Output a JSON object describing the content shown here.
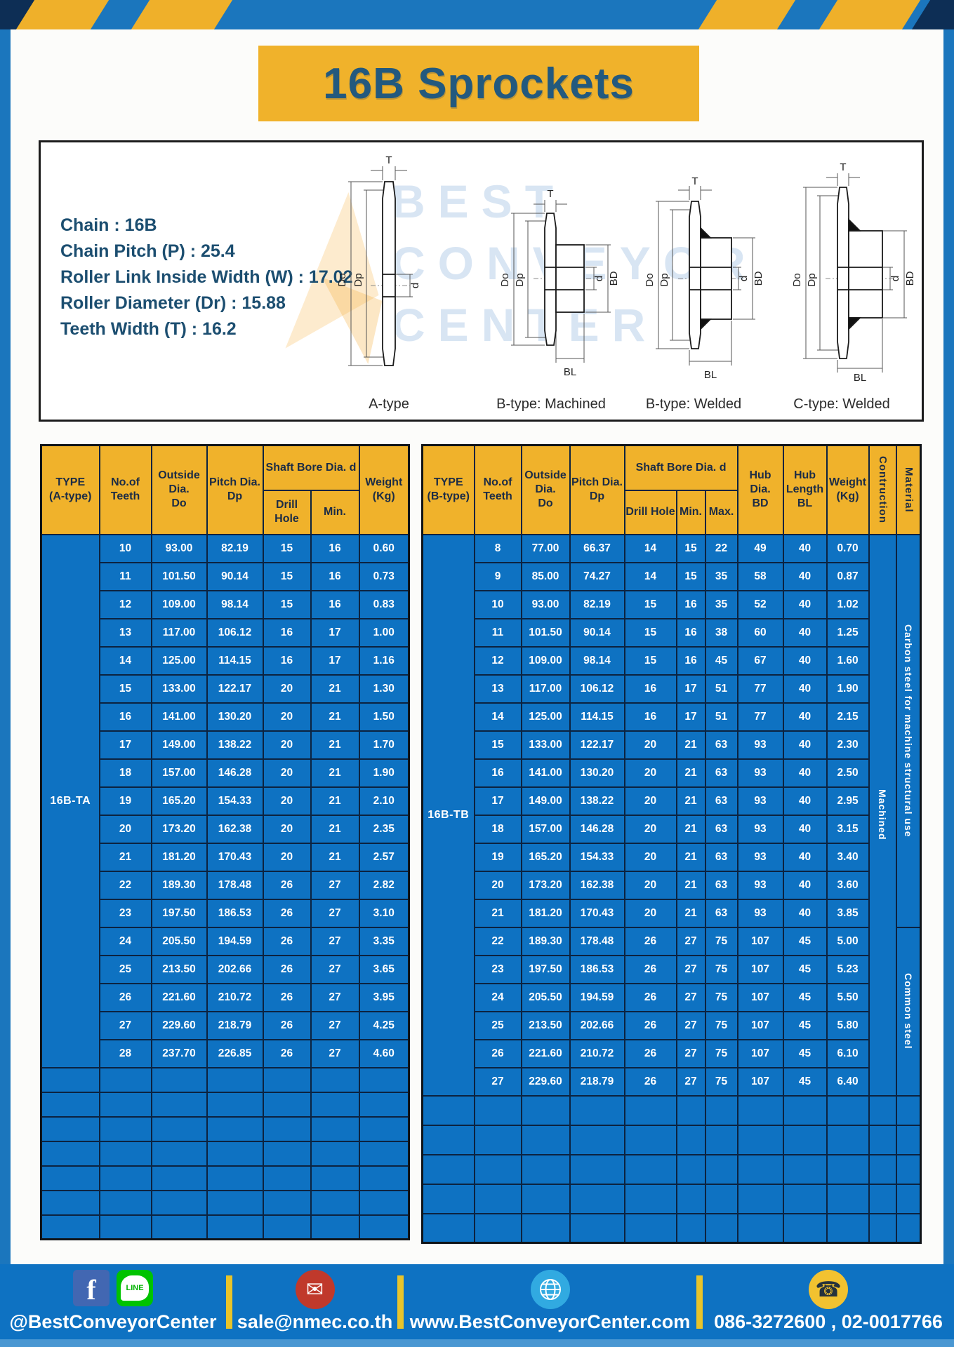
{
  "page": {
    "title": "16B Sprockets"
  },
  "specs": {
    "lines": [
      "Chain  :  16B",
      "Chain Pitch (P)  :  25.4",
      "Roller Link Inside Width (W)  :  17.02",
      "Roller Diameter (Dr)  : 15.88",
      "Teeth Width (T)  :  16.2"
    ]
  },
  "diagram": {
    "captions": [
      "A-type",
      "B-type: Machined",
      "B-type: Welded",
      "C-type: Welded"
    ],
    "dims": {
      "t": "T",
      "d_o": "Do",
      "dp": "Dp",
      "d": "d",
      "bd": "BD",
      "bl": "BL"
    },
    "watermark": [
      "BEST",
      "CONVEYOR",
      "CENTER"
    ]
  },
  "table_a": {
    "type_label": "16B-TA",
    "header": {
      "type1": "TYPE",
      "type2": "(A-type)",
      "teeth1": "No.of",
      "teeth2": "Teeth",
      "outside1": "Outside",
      "outside2": "Dia.",
      "outside3": "Do",
      "pitch1": "Pitch Dia.",
      "pitch2": "Dp",
      "shaft": "Shaft Bore Dia. d",
      "drill": "Drill Hole",
      "min": "Min.",
      "weight1": "Weight",
      "weight2": "(Kg)"
    },
    "rows": [
      [
        "10",
        "93.00",
        "82.19",
        "15",
        "16",
        "0.60"
      ],
      [
        "11",
        "101.50",
        "90.14",
        "15",
        "16",
        "0.73"
      ],
      [
        "12",
        "109.00",
        "98.14",
        "15",
        "16",
        "0.83"
      ],
      [
        "13",
        "117.00",
        "106.12",
        "16",
        "17",
        "1.00"
      ],
      [
        "14",
        "125.00",
        "114.15",
        "16",
        "17",
        "1.16"
      ],
      [
        "15",
        "133.00",
        "122.17",
        "20",
        "21",
        "1.30"
      ],
      [
        "16",
        "141.00",
        "130.20",
        "20",
        "21",
        "1.50"
      ],
      [
        "17",
        "149.00",
        "138.22",
        "20",
        "21",
        "1.70"
      ],
      [
        "18",
        "157.00",
        "146.28",
        "20",
        "21",
        "1.90"
      ],
      [
        "19",
        "165.20",
        "154.33",
        "20",
        "21",
        "2.10"
      ],
      [
        "20",
        "173.20",
        "162.38",
        "20",
        "21",
        "2.35"
      ],
      [
        "21",
        "181.20",
        "170.43",
        "20",
        "21",
        "2.57"
      ],
      [
        "22",
        "189.30",
        "178.48",
        "26",
        "27",
        "2.82"
      ],
      [
        "23",
        "197.50",
        "186.53",
        "26",
        "27",
        "3.10"
      ],
      [
        "24",
        "205.50",
        "194.59",
        "26",
        "27",
        "3.35"
      ],
      [
        "25",
        "213.50",
        "202.66",
        "26",
        "27",
        "3.65"
      ],
      [
        "26",
        "221.60",
        "210.72",
        "26",
        "27",
        "3.95"
      ],
      [
        "27",
        "229.60",
        "218.79",
        "26",
        "27",
        "4.25"
      ],
      [
        "28",
        "237.70",
        "226.85",
        "26",
        "27",
        "4.60"
      ]
    ],
    "empty_rows": 7
  },
  "table_b": {
    "type_label": "16B-TB",
    "header": {
      "type1": "TYPE",
      "type2": "(B-type)",
      "teeth1": "No.of",
      "teeth2": "Teeth",
      "outside1": "Outside",
      "outside2": "Dia.",
      "outside3": "Do",
      "pitch1": "Pitch Dia.",
      "pitch2": "Dp",
      "shaft": "Shaft Bore Dia. d",
      "drill": "Drill Hole",
      "min": "Min.",
      "max": "Max.",
      "hub1": "Hub Dia.",
      "hub2": "BD",
      "hublen1": "Hub",
      "hublen2": "Length",
      "hublen3": "BL",
      "weight1": "Weight",
      "weight2": "(Kg)",
      "construction": "Contruction",
      "material": "Material"
    },
    "construction": {
      "label": "Machined",
      "span": 20
    },
    "materials": [
      {
        "label": "Carbon steel for machine structural use",
        "span": 14
      },
      {
        "label": "Common steel",
        "span": 6
      }
    ],
    "rows": [
      [
        "8",
        "77.00",
        "66.37",
        "14",
        "15",
        "22",
        "49",
        "40",
        "0.70"
      ],
      [
        "9",
        "85.00",
        "74.27",
        "14",
        "15",
        "35",
        "58",
        "40",
        "0.87"
      ],
      [
        "10",
        "93.00",
        "82.19",
        "15",
        "16",
        "35",
        "52",
        "40",
        "1.02"
      ],
      [
        "11",
        "101.50",
        "90.14",
        "15",
        "16",
        "38",
        "60",
        "40",
        "1.25"
      ],
      [
        "12",
        "109.00",
        "98.14",
        "15",
        "16",
        "45",
        "67",
        "40",
        "1.60"
      ],
      [
        "13",
        "117.00",
        "106.12",
        "16",
        "17",
        "51",
        "77",
        "40",
        "1.90"
      ],
      [
        "14",
        "125.00",
        "114.15",
        "16",
        "17",
        "51",
        "77",
        "40",
        "2.15"
      ],
      [
        "15",
        "133.00",
        "122.17",
        "20",
        "21",
        "63",
        "93",
        "40",
        "2.30"
      ],
      [
        "16",
        "141.00",
        "130.20",
        "20",
        "21",
        "63",
        "93",
        "40",
        "2.50"
      ],
      [
        "17",
        "149.00",
        "138.22",
        "20",
        "21",
        "63",
        "93",
        "40",
        "2.95"
      ],
      [
        "18",
        "157.00",
        "146.28",
        "20",
        "21",
        "63",
        "93",
        "40",
        "3.15"
      ],
      [
        "19",
        "165.20",
        "154.33",
        "20",
        "21",
        "63",
        "93",
        "40",
        "3.40"
      ],
      [
        "20",
        "173.20",
        "162.38",
        "20",
        "21",
        "63",
        "93",
        "40",
        "3.60"
      ],
      [
        "21",
        "181.20",
        "170.43",
        "20",
        "21",
        "63",
        "93",
        "40",
        "3.85"
      ],
      [
        "22",
        "189.30",
        "178.48",
        "26",
        "27",
        "75",
        "107",
        "45",
        "5.00"
      ],
      [
        "23",
        "197.50",
        "186.53",
        "26",
        "27",
        "75",
        "107",
        "45",
        "5.23"
      ],
      [
        "24",
        "205.50",
        "194.59",
        "26",
        "27",
        "75",
        "107",
        "45",
        "5.50"
      ],
      [
        "25",
        "213.50",
        "202.66",
        "26",
        "27",
        "75",
        "107",
        "45",
        "5.80"
      ],
      [
        "26",
        "221.60",
        "210.72",
        "26",
        "27",
        "75",
        "107",
        "45",
        "6.10"
      ],
      [
        "27",
        "229.60",
        "218.79",
        "26",
        "27",
        "75",
        "107",
        "45",
        "6.40"
      ]
    ],
    "empty_rows": 5
  },
  "footer": {
    "social_label": "@BestConveyorCenter",
    "line_text": "LINE",
    "email": "sale@nmec.co.th",
    "website": "www.BestConveyorCenter.com",
    "phones": "086-3272600 , 02-0017766",
    "mail_glyph": "✉",
    "phone_glyph": "☎",
    "fb_glyph": "f"
  },
  "colors": {
    "frame_blue": "#1b76bd",
    "table_blue": "#0e72c2",
    "header_yellow": "#f0b22b",
    "stripe_yellow": "#efb02a",
    "corner_navy": "#0d2e55",
    "title_text": "#23597e",
    "separator_yellow": "#e8c42a"
  }
}
